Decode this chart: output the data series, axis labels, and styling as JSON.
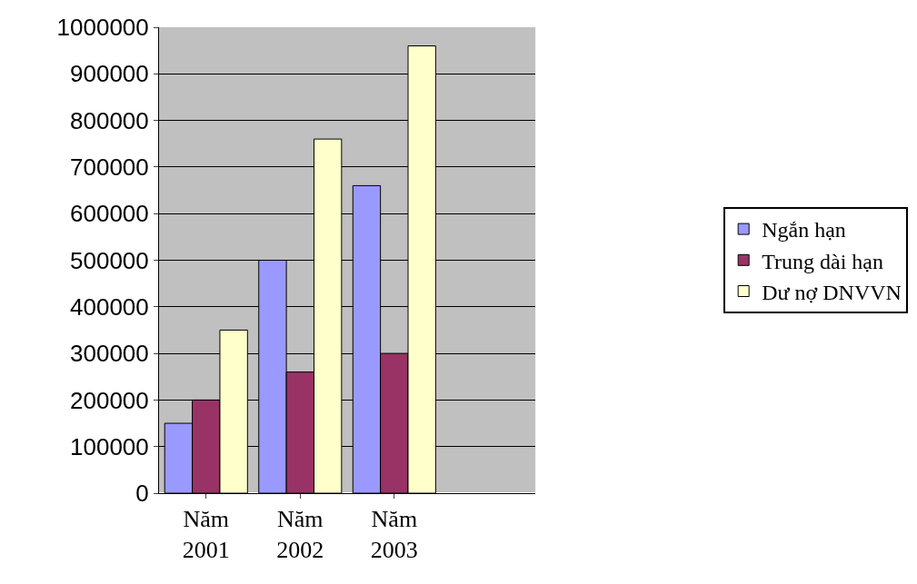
{
  "chart_data": {
    "type": "bar",
    "categories": [
      "Năm 2001",
      "Năm 2002",
      "Năm 2003",
      null
    ],
    "series": [
      {
        "name": "Ngắn hạn",
        "color": "#9999ff",
        "values": [
          150000,
          500000,
          660000,
          null
        ]
      },
      {
        "name": "Trung dài hạn",
        "color": "#993366",
        "values": [
          200000,
          260000,
          300000,
          null
        ]
      },
      {
        "name": "Dư nợ DNVVN",
        "color": "#ffffcc",
        "values": [
          350000,
          760000,
          960000,
          null
        ]
      }
    ],
    "ylim": [
      0,
      1000000
    ],
    "yticks": [
      0,
      100000,
      200000,
      300000,
      400000,
      500000,
      600000,
      700000,
      800000,
      900000,
      1000000
    ],
    "grid": "y",
    "legend": "right"
  }
}
